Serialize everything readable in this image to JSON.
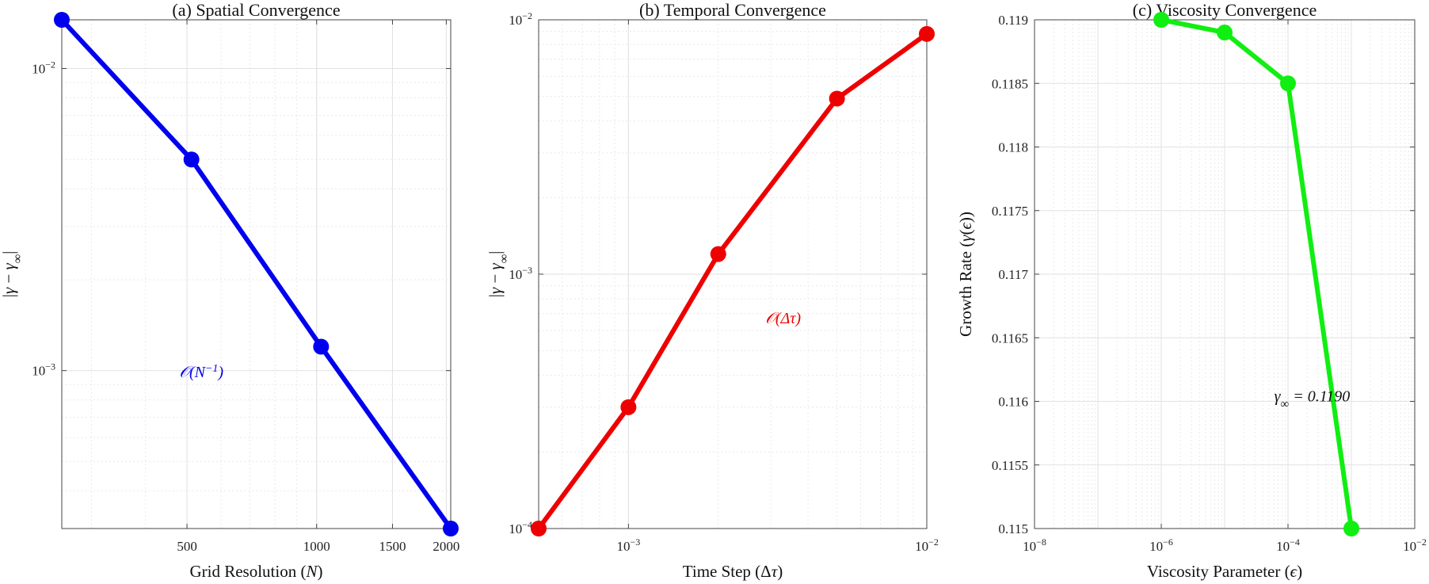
{
  "chart_data": [
    {
      "type": "line",
      "title": "(a) Spatial Convergence",
      "xlabel": "Grid Resolution (N)",
      "ylabel": "|γ − γ∞|",
      "xscale": "log",
      "yscale": "log",
      "xlim": [
        256,
        2048
      ],
      "ylim": [
        0.0003,
        0.0145
      ],
      "xticks": [
        500,
        1000,
        1500,
        2000
      ],
      "xtick_labels": [
        "500",
        "1000",
        "1500",
        "2000"
      ],
      "yticks": [
        0.001,
        0.01
      ],
      "ytick_labels": [
        "10−3",
        "10−2"
      ],
      "grid": true,
      "color": "#0000ee",
      "series": [
        {
          "x": [
            256,
            512,
            1024,
            2048
          ],
          "y": [
            0.0145,
            0.005,
            0.0012,
            0.0003
          ]
        }
      ],
      "annotation": {
        "text": "𝒪(N−1)",
        "x": 540,
        "y": 0.00095
      }
    },
    {
      "type": "line",
      "title": "(b) Temporal Convergence",
      "xlabel": "Time Step (Δτ)",
      "ylabel": "|γ − γ∞|",
      "xscale": "log",
      "yscale": "log",
      "xlim": [
        0.0005,
        0.01
      ],
      "ylim": [
        0.0001,
        0.01
      ],
      "xticks": [
        0.001,
        0.01
      ],
      "xtick_labels": [
        "10−3",
        "10−2"
      ],
      "yticks": [
        0.0001,
        0.001,
        0.01
      ],
      "ytick_labels": [
        "10−4",
        "10−3",
        "10−2"
      ],
      "grid": true,
      "color": "#ee0000",
      "series": [
        {
          "x": [
            0.0005,
            0.001,
            0.002,
            0.005,
            0.01
          ],
          "y": [
            0.0001,
            0.0003,
            0.0012,
            0.0049,
            0.0088
          ]
        }
      ],
      "annotation": {
        "text": "𝒪(Δτ)",
        "x": 0.0033,
        "y": 0.00064
      }
    },
    {
      "type": "line",
      "title": "(c) Viscosity Convergence",
      "xlabel": "Viscosity Parameter (ϵ)",
      "ylabel": "Growth Rate (γ(ϵ))",
      "xscale": "log",
      "yscale": "linear",
      "xlim": [
        1e-08,
        0.01
      ],
      "ylim": [
        0.115,
        0.119
      ],
      "xticks": [
        1e-08,
        1e-06,
        0.0001,
        0.01
      ],
      "xtick_labels": [
        "10−8",
        "10−6",
        "10−4",
        "10−2"
      ],
      "yticks": [
        0.115,
        0.1155,
        0.116,
        0.1165,
        0.117,
        0.1175,
        0.118,
        0.1185,
        0.119
      ],
      "ytick_labels": [
        "0.115",
        "0.1155",
        "0.116",
        "0.1165",
        "0.117",
        "0.1175",
        "0.118",
        "0.1185",
        "0.119"
      ],
      "grid": true,
      "color": "#11ee11",
      "series": [
        {
          "x": [
            1e-06,
            1e-05,
            0.0001,
            0.001
          ],
          "y": [
            0.119,
            0.1189,
            0.1185,
            0.115
          ]
        }
      ],
      "annotation": {
        "text": "γ∞ = 0.1190",
        "x": 0.00024,
        "y": 0.116
      }
    }
  ]
}
